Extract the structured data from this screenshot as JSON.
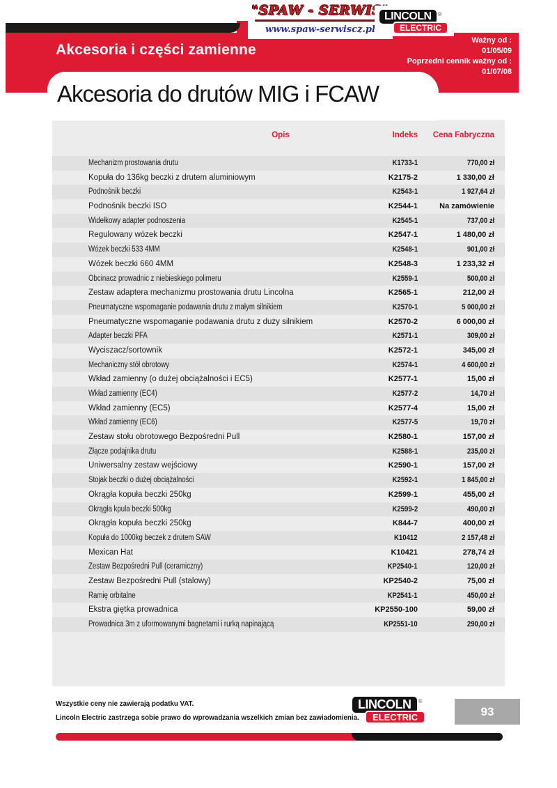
{
  "header": {
    "banner_title": "Akcesoria i części zamienne",
    "page_title": "Akcesoria do drutów MIG i FCAW",
    "validity": {
      "valid_from_label": "Ważny od :",
      "valid_from_date": "01/05/09",
      "previous_label": "Poprzedni cennik ważny od :",
      "previous_date": "01/07/08"
    }
  },
  "logos": {
    "spaw": {
      "name": "\"SPAW - SERWIS\"",
      "url": "www.spaw-serwiscz.pl"
    },
    "lincoln": {
      "line1": "LINCOLN",
      "line2": "ELECTRIC",
      "registered": "®"
    }
  },
  "table": {
    "columns": {
      "opis": "Opis",
      "indeks": "Indeks",
      "cena": "Cena Fabryczna"
    },
    "rows": [
      {
        "opis": "Mechanizm prostowania drutu",
        "indeks": "K1733-1",
        "cena": "770,00 zł"
      },
      {
        "opis": "Kopuła do 136kg beczki z drutem aluminiowym",
        "indeks": "K2175-2",
        "cena": "1 330,00 zł"
      },
      {
        "opis": "Podnośnik beczki",
        "indeks": "K2543-1",
        "cena": "1 927,64 zł"
      },
      {
        "opis": "Podnośnik beczki ISO",
        "indeks": "K2544-1",
        "cena": "Na zamówienie"
      },
      {
        "opis": "Widełkowy adapter podnoszenia",
        "indeks": "K2545-1",
        "cena": "737,00 zł"
      },
      {
        "opis": "Regulowany wózek beczki",
        "indeks": "K2547-1",
        "cena": "1 480,00 zł"
      },
      {
        "opis": "Wózek beczki 533 4MM",
        "indeks": "K2548-1",
        "cena": "901,00 zł"
      },
      {
        "opis": "Wózek beczki 660 4MM",
        "indeks": "K2548-3",
        "cena": "1 233,32 zł"
      },
      {
        "opis": "Obcinacz prowadnic z niebieskiego polimeru",
        "indeks": "K2559-1",
        "cena": "500,00 zł"
      },
      {
        "opis": "Zestaw adaptera mechanizmu prostowania drutu Lincolna",
        "indeks": "K2565-1",
        "cena": "212,00 zł"
      },
      {
        "opis": "Pneumatyczne wspomaganie podawania drutu z małym silnikiem",
        "indeks": "K2570-1",
        "cena": "5 000,00 zł"
      },
      {
        "opis": "Pneumatyczne wspomaganie podawania drutu z duży silnikiem",
        "indeks": "K2570-2",
        "cena": "6 000,00 zł"
      },
      {
        "opis": "Adapter beczki PFA",
        "indeks": "K2571-1",
        "cena": "309,00 zł"
      },
      {
        "opis": "Wyciszacz/sortownik",
        "indeks": "K2572-1",
        "cena": "345,00 zł"
      },
      {
        "opis": "Mechaniczny stół obrotowy",
        "indeks": "K2574-1",
        "cena": "4 600,00 zł"
      },
      {
        "opis": "Wkład zamienny (o dużej obciążalności i EC5)",
        "indeks": "K2577-1",
        "cena": "15,00 zł"
      },
      {
        "opis": "Wkład zamienny (EC4)",
        "indeks": "K2577-2",
        "cena": "14,70 zł"
      },
      {
        "opis": "Wkład zamienny (EC5)",
        "indeks": "K2577-4",
        "cena": "15,00 zł"
      },
      {
        "opis": "Wkład zamienny (EC6)",
        "indeks": "K2577-5",
        "cena": "19,70 zł"
      },
      {
        "opis": "Zestaw stołu obrotowego Bezpośredni Pull",
        "indeks": "K2580-1",
        "cena": "157,00 zł"
      },
      {
        "opis": "Złącze podajnika drutu",
        "indeks": "K2588-1",
        "cena": "235,00 zł"
      },
      {
        "opis": "Uniwersalny zestaw wejściowy",
        "indeks": "K2590-1",
        "cena": "157,00 zł"
      },
      {
        "opis": "Stojak beczki o dużej obciążalności",
        "indeks": "K2592-1",
        "cena": "1 845,00 zł"
      },
      {
        "opis": "Okrągła kopuła beczki 250kg",
        "indeks": "K2599-1",
        "cena": "455,00 zł"
      },
      {
        "opis": "Okrągła kpula beczki 500kg",
        "indeks": "K2599-2",
        "cena": "490,00 zł"
      },
      {
        "opis": "Okrągła kopuła beczki 250kg",
        "indeks": "K844-7",
        "cena": "400,00 zł"
      },
      {
        "opis": "Kopuła do 1000kg beczek z drutem SAW",
        "indeks": "K10412",
        "cena": "2 157,48 zł"
      },
      {
        "opis": "Mexican Hat",
        "indeks": "K10421",
        "cena": "278,74 zł"
      },
      {
        "opis": "Zestaw Bezpośredni Pull (ceramiczny)",
        "indeks": "KP2540-1",
        "cena": "120,00 zł"
      },
      {
        "opis": "Zestaw Bezpośredni Pull (stalowy)",
        "indeks": "KP2540-2",
        "cena": "75,00 zł"
      },
      {
        "opis": "Ramię orbitalne",
        "indeks": "KP2541-1",
        "cena": "450,00 zł"
      },
      {
        "opis": "Ekstra giętka prowadnica",
        "indeks": "KP2550-100",
        "cena": "59,00 zł"
      },
      {
        "opis": "Prowadnica 3m z uformowanymi bagnetami i rurką napinającą",
        "indeks": "KP2551-10",
        "cena": "290,00 zł"
      }
    ]
  },
  "footer": {
    "note1": "Wszystkie ceny nie zawierają podatku VAT.",
    "note2": "Lincoln Electric zastrzega sobie prawo do wprowadzania wszelkich zmian bez zawiadomienia.",
    "page_number": "93"
  },
  "colors": {
    "brand_red": "#de1b32",
    "bar_black": "#1d1b1a",
    "table_bg": "#ececec",
    "row_stripe": "#e1e1e1",
    "page_box_gray": "#a8a8a8",
    "spaw_red": "#c22028",
    "spaw_blue": "#2a2f9e"
  }
}
